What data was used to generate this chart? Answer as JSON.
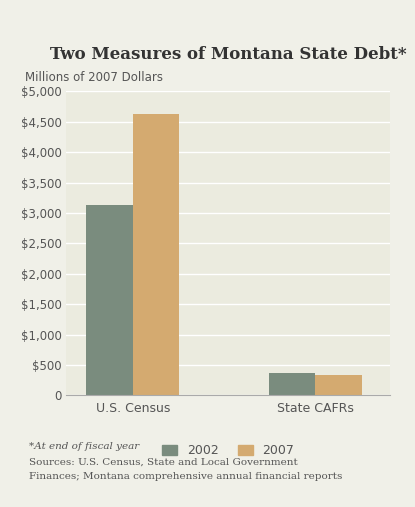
{
  "title": "Two Measures of Montana State Debt*",
  "ylabel": "Millions of 2007 Dollars",
  "categories": [
    "U.S. Census",
    "State CAFRs"
  ],
  "series": {
    "2002": [
      3125,
      375
    ],
    "2007": [
      4625,
      340
    ]
  },
  "bar_colors": {
    "2002": "#7a8c7e",
    "2007": "#d4aa70"
  },
  "ylim": [
    0,
    5000
  ],
  "yticks": [
    0,
    500,
    1000,
    1500,
    2000,
    2500,
    3000,
    3500,
    4000,
    4500,
    5000
  ],
  "ytick_labels": [
    "0",
    "$500",
    "$1,000",
    "$1,500",
    "$2,000",
    "$2,500",
    "$3,000",
    "$3,500",
    "$4,000",
    "$4,500",
    "$5,000"
  ],
  "background_color": "#f0f0e8",
  "plot_bg_color": "#ebebdf",
  "footnote1": "*At end of fiscal year",
  "footnote2": "Sources: U.S. Census, State and Local Government",
  "footnote3": "Finances; Montana comprehensive annual financial reports",
  "title_fontsize": 12,
  "label_fontsize": 8.5,
  "tick_fontsize": 8.5,
  "legend_fontsize": 9,
  "bar_width": 0.28,
  "x_positions": [
    0.45,
    1.55
  ]
}
